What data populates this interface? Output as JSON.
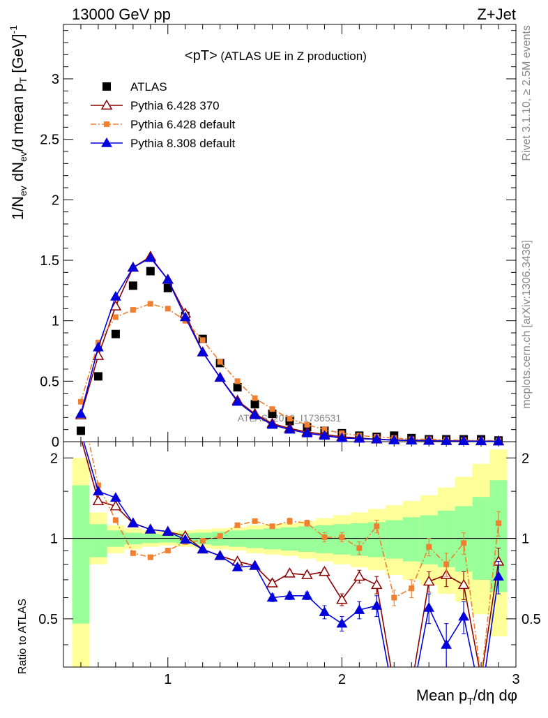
{
  "header": {
    "left": "13000 GeV pp",
    "right": "Z+Jet"
  },
  "plot_title_main": "<pT>",
  "plot_title_sub": " (ATLAS UE in Z production)",
  "side_text_top": "Rivet 3.1.10, ≥ 2.5M events",
  "side_text_bottom": "mcplots.cern.ch [arXiv:1306.3436]",
  "watermark": "ATLAS_2019_I1736531",
  "xlabel": "Mean p_T/dη dφ",
  "ylabel_main": "1/N_ev dN_ev/d mean p_T [GeV]^-1",
  "ylabel_ratio": "Ratio to ATLAS",
  "colors": {
    "ATLAS": "#000000",
    "Pythia 6.428 370": "#8b0000",
    "Pythia 6.428 default": "#f08030",
    "Pythia 8.308 default": "#0000dd",
    "band_inner": "#99ff99",
    "band_outer": "#ffff99"
  },
  "chart_data": [
    {
      "type": "scatter",
      "panel": "main",
      "x": [
        0.5,
        0.6,
        0.7,
        0.8,
        0.9,
        1.0,
        1.1,
        1.2,
        1.3,
        1.4,
        1.5,
        1.6,
        1.7,
        1.8,
        1.9,
        2.0,
        2.1,
        2.2,
        2.3,
        2.4,
        2.5,
        2.6,
        2.7,
        2.8,
        2.9
      ],
      "xlim": [
        0.4,
        3.0
      ],
      "ylim": [
        0,
        3.45
      ],
      "xticks": [
        1,
        2,
        3
      ],
      "yticks": [
        0,
        0.5,
        1,
        1.5,
        2,
        2.5,
        3
      ],
      "ytick_labels": [
        "0",
        "0.5",
        "1",
        "1.5",
        "2",
        "2.5",
        "3"
      ],
      "legend": "top-left",
      "series": [
        {
          "name": "ATLAS",
          "marker": "square",
          "values": [
            0.09,
            0.54,
            0.89,
            1.29,
            1.41,
            1.27,
            1.04,
            0.85,
            0.65,
            0.45,
            0.31,
            0.23,
            0.17,
            0.12,
            0.09,
            0.07,
            0.05,
            0.04,
            0.05,
            0.03,
            0.02,
            0.02,
            0.02,
            0.02,
            0.01
          ]
        },
        {
          "name": "Pythia 6.428 370",
          "marker": "triangle-open",
          "values": [
            0.22,
            0.71,
            1.12,
            1.44,
            1.53,
            1.34,
            1.06,
            0.74,
            0.53,
            0.34,
            0.23,
            0.15,
            0.11,
            0.08,
            0.06,
            0.04,
            0.03,
            0.02,
            0.015,
            0.012,
            0.01,
            0.008,
            0.006,
            0.005,
            0.004
          ]
        },
        {
          "name": "Pythia 6.428 default",
          "marker": "small-square-dashdot",
          "values": [
            0.33,
            0.82,
            1.03,
            1.09,
            1.14,
            1.1,
            1.0,
            0.84,
            0.66,
            0.5,
            0.36,
            0.27,
            0.19,
            0.14,
            0.1,
            0.07,
            0.05,
            0.04,
            0.03,
            0.02,
            0.02,
            0.015,
            0.012,
            0.01,
            0.008
          ]
        },
        {
          "name": "Pythia 8.308 default",
          "marker": "triangle-filled",
          "values": [
            0.23,
            0.78,
            1.2,
            1.44,
            1.52,
            1.34,
            1.03,
            0.74,
            0.53,
            0.33,
            0.22,
            0.14,
            0.1,
            0.07,
            0.05,
            0.03,
            0.025,
            0.02,
            0.012,
            0.01,
            0.008,
            0.006,
            0.005,
            0.004,
            0.003
          ]
        }
      ]
    },
    {
      "type": "line",
      "panel": "ratio",
      "x": [
        0.5,
        0.6,
        0.7,
        0.8,
        0.9,
        1.0,
        1.1,
        1.2,
        1.3,
        1.4,
        1.5,
        1.6,
        1.7,
        1.8,
        1.9,
        2.0,
        2.1,
        2.2,
        2.3,
        2.4,
        2.5,
        2.6,
        2.7,
        2.8,
        2.9
      ],
      "xlim": [
        0.4,
        3.0
      ],
      "ylim": [
        0.33,
        2.3
      ],
      "yscale": "log",
      "xticks": [
        1,
        2,
        3
      ],
      "yticks": [
        0.5,
        1,
        2
      ],
      "ytick_labels": [
        "0.5",
        "1",
        "2"
      ],
      "reference_line": 1,
      "bands": {
        "inner": [
          [
            0.48,
            1.58
          ],
          [
            0.85,
            1.13
          ],
          [
            0.93,
            1.07
          ],
          [
            0.95,
            1.05
          ],
          [
            0.96,
            1.04
          ],
          [
            0.965,
            1.035
          ],
          [
            0.955,
            1.045
          ],
          [
            0.95,
            1.05
          ],
          [
            0.94,
            1.06
          ],
          [
            0.93,
            1.07
          ],
          [
            0.92,
            1.08
          ],
          [
            0.91,
            1.09
          ],
          [
            0.9,
            1.1
          ],
          [
            0.89,
            1.11
          ],
          [
            0.88,
            1.12
          ],
          [
            0.87,
            1.13
          ],
          [
            0.86,
            1.14
          ],
          [
            0.85,
            1.15
          ],
          [
            0.84,
            1.17
          ],
          [
            0.82,
            1.2
          ],
          [
            0.8,
            1.22
          ],
          [
            0.78,
            1.27
          ],
          [
            0.75,
            1.32
          ],
          [
            0.7,
            1.43
          ],
          [
            0.63,
            1.65
          ]
        ],
        "outer": [
          [
            0.33,
            2.0
          ],
          [
            0.8,
            1.25
          ],
          [
            0.88,
            1.12
          ],
          [
            0.91,
            1.09
          ],
          [
            0.93,
            1.07
          ],
          [
            0.94,
            1.06
          ],
          [
            0.93,
            1.07
          ],
          [
            0.92,
            1.08
          ],
          [
            0.91,
            1.09
          ],
          [
            0.9,
            1.1
          ],
          [
            0.88,
            1.12
          ],
          [
            0.87,
            1.13
          ],
          [
            0.86,
            1.14
          ],
          [
            0.84,
            1.16
          ],
          [
            0.82,
            1.19
          ],
          [
            0.8,
            1.22
          ],
          [
            0.78,
            1.25
          ],
          [
            0.76,
            1.29
          ],
          [
            0.73,
            1.33
          ],
          [
            0.7,
            1.38
          ],
          [
            0.67,
            1.45
          ],
          [
            0.62,
            1.55
          ],
          [
            0.58,
            1.7
          ],
          [
            0.52,
            1.9
          ],
          [
            0.43,
            2.15
          ]
        ]
      },
      "series": [
        {
          "name": "Pythia 6.428 370",
          "values": [
            2.38,
            1.38,
            1.32,
            1.14,
            1.08,
            1.06,
            1.02,
            0.91,
            0.86,
            0.82,
            0.79,
            0.68,
            0.74,
            0.73,
            0.75,
            0.59,
            0.72,
            0.67,
            0.28,
            0.28,
            0.69,
            0.73,
            0.67,
            0.3,
            0.82
          ],
          "errors": [
            0.0,
            0.02,
            0.02,
            0.01,
            0.01,
            0.01,
            0.01,
            0.01,
            0.01,
            0.01,
            0.01,
            0.02,
            0.02,
            0.02,
            0.02,
            0.03,
            0.04,
            0.05,
            0.0,
            0.0,
            0.06,
            0.07,
            0.08,
            0.0,
            0.1
          ]
        },
        {
          "name": "Pythia 6.428 default",
          "values": [
            3.2,
            1.58,
            1.17,
            0.88,
            0.85,
            0.9,
            0.97,
            0.98,
            1.02,
            1.12,
            1.16,
            1.11,
            1.16,
            1.14,
            1.01,
            1.01,
            0.92,
            1.11,
            0.6,
            0.65,
            0.93,
            0.8,
            0.96,
            0.3,
            1.14
          ],
          "errors": [
            0.0,
            0.03,
            0.02,
            0.01,
            0.01,
            0.01,
            0.01,
            0.01,
            0.01,
            0.02,
            0.02,
            0.02,
            0.03,
            0.03,
            0.04,
            0.04,
            0.05,
            0.06,
            0.04,
            0.05,
            0.07,
            0.08,
            0.09,
            0.0,
            0.12
          ]
        },
        {
          "name": "Pythia 8.308 default",
          "values": [
            2.5,
            1.5,
            1.42,
            1.14,
            1.08,
            1.06,
            0.99,
            0.91,
            0.86,
            0.78,
            0.79,
            0.6,
            0.61,
            0.61,
            0.53,
            0.48,
            0.54,
            0.56,
            0.25,
            0.25,
            0.55,
            0.4,
            0.51,
            0.25,
            0.72
          ],
          "errors": [
            0.0,
            0.02,
            0.02,
            0.01,
            0.01,
            0.01,
            0.01,
            0.01,
            0.01,
            0.01,
            0.01,
            0.02,
            0.02,
            0.02,
            0.03,
            0.03,
            0.04,
            0.05,
            0.0,
            0.0,
            0.07,
            0.08,
            0.07,
            0.0,
            0.1
          ]
        }
      ]
    }
  ]
}
